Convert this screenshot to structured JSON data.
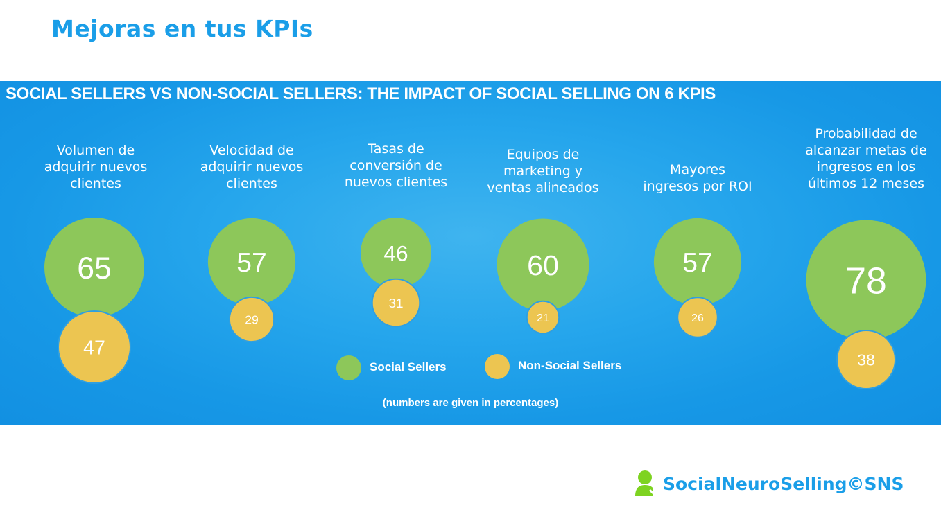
{
  "page": {
    "title": "Mejoras en tus KPIs"
  },
  "brand": {
    "name": "SocialNeuroSelling©SNS",
    "icon": "person-check-icon",
    "icon_color": "#7ed321",
    "text_color": "#1a9ee8"
  },
  "chart_data": {
    "type": "bubble",
    "title": "SOCIAL SELLERS VS NON-SOCIAL SELLERS: THE IMPACT OF SOCIAL SELLING ON 6 KPIS",
    "note": "(numbers are given in percentages)",
    "categories": [
      {
        "lines": [
          "Volumen de",
          "adquirir nuevos",
          "clientes"
        ]
      },
      {
        "lines": [
          "Velocidad  de",
          "adquirir nuevos",
          "clientes"
        ]
      },
      {
        "lines": [
          "Tasas de",
          "conversión de",
          "nuevos clientes"
        ]
      },
      {
        "lines": [
          "Equipos de",
          "marketing y",
          "ventas alineados"
        ]
      },
      {
        "lines": [
          "Mayores",
          "ingresos por ROI"
        ]
      },
      {
        "lines": [
          "Probabilidad de",
          "alcanzar metas de",
          "ingresos en los",
          "últimos 12 meses"
        ]
      }
    ],
    "series": [
      {
        "name": "Social Sellers",
        "color": "#8dc75a",
        "values": [
          65,
          57,
          46,
          60,
          57,
          78
        ]
      },
      {
        "name": "Non-Social Sellers",
        "color": "#ecc551",
        "values": [
          47,
          29,
          31,
          21,
          26,
          38
        ]
      }
    ],
    "legend_position": "bottom-center",
    "unit": "%"
  }
}
